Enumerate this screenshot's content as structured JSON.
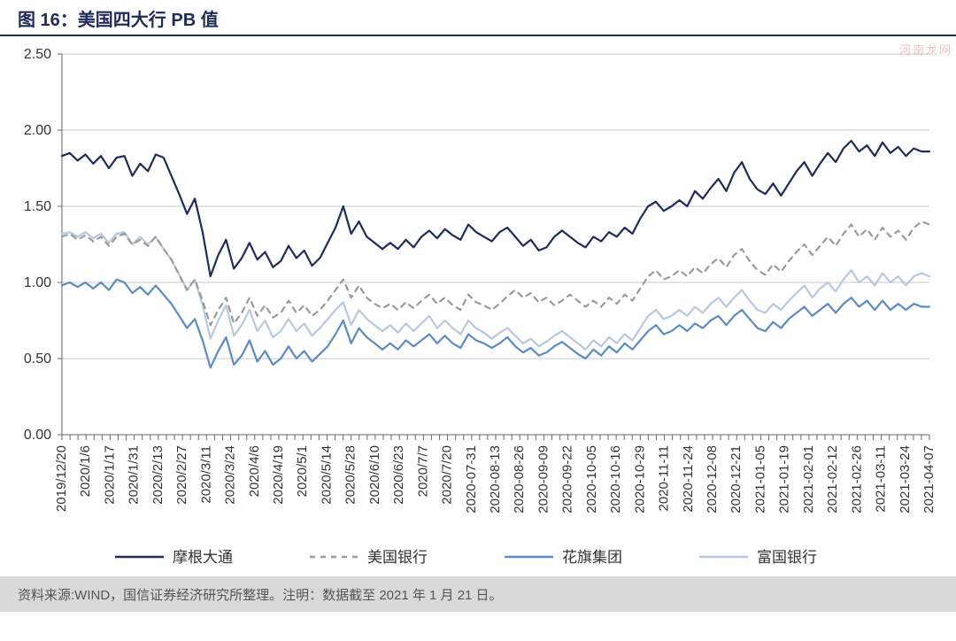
{
  "header": {
    "title": "图 16：美国四大行 PB 值"
  },
  "footer": {
    "text": "资料来源:WIND，国信证券经济研究所整理。注明：数据截至 2021 年 1 月 21 日。"
  },
  "watermark": "河南龙网",
  "chart": {
    "type": "line",
    "background_color": "#ffffff",
    "grid_color": "#c8c8c8",
    "axis_color": "#666666",
    "tick_color": "#666666",
    "label_fontsize": 16,
    "xlabel_fontsize": 15,
    "legend_fontsize": 17,
    "ylim": [
      0.0,
      2.5
    ],
    "ytick_step": 0.5,
    "yticks": [
      "0.00",
      "0.50",
      "1.00",
      "1.50",
      "2.00",
      "2.50"
    ],
    "x_labels": [
      "2019/12/20",
      "2020/1/6",
      "2020/1/17",
      "2020/1/31",
      "2020/2/13",
      "2020/2/27",
      "2020/3/11",
      "2020/3/24",
      "2020/4/6",
      "2020/4/19",
      "2020/5/1",
      "2020/5/14",
      "2020/5/28",
      "2020/6/10",
      "2020/6/23",
      "2020/7/7",
      "2020/7/20",
      "2020-07-31",
      "2020-08-13",
      "2020-08-26",
      "2020-09-09",
      "2020-09-22",
      "2020-10-05",
      "2020-10-16",
      "2020-10-29",
      "2020-11-11",
      "2020-11-24",
      "2020-12-08",
      "2020-12-21",
      "2021-01-05",
      "2021-01-19",
      "2021-02-01",
      "2021-02-12",
      "2021-02-26",
      "2021-03-11",
      "2021-03-24",
      "2021-04-07"
    ],
    "series": [
      {
        "name": "摩根大通",
        "color": "#1f2b5a",
        "line_width": 2.2,
        "dash": "none",
        "points": [
          1.83,
          1.85,
          1.8,
          1.84,
          1.78,
          1.83,
          1.75,
          1.82,
          1.83,
          1.7,
          1.78,
          1.73,
          1.84,
          1.82,
          1.7,
          1.58,
          1.45,
          1.55,
          1.33,
          1.04,
          1.18,
          1.28,
          1.09,
          1.16,
          1.26,
          1.15,
          1.2,
          1.1,
          1.14,
          1.24,
          1.16,
          1.21,
          1.11,
          1.16,
          1.26,
          1.36,
          1.5,
          1.32,
          1.4,
          1.3,
          1.26,
          1.22,
          1.26,
          1.22,
          1.28,
          1.23,
          1.3,
          1.34,
          1.29,
          1.35,
          1.31,
          1.28,
          1.38,
          1.33,
          1.3,
          1.27,
          1.33,
          1.36,
          1.3,
          1.24,
          1.28,
          1.21,
          1.23,
          1.3,
          1.34,
          1.3,
          1.26,
          1.23,
          1.3,
          1.27,
          1.33,
          1.3,
          1.36,
          1.32,
          1.42,
          1.5,
          1.53,
          1.47,
          1.5,
          1.54,
          1.5,
          1.6,
          1.55,
          1.62,
          1.68,
          1.6,
          1.72,
          1.79,
          1.68,
          1.61,
          1.58,
          1.65,
          1.57,
          1.65,
          1.73,
          1.79,
          1.7,
          1.78,
          1.85,
          1.79,
          1.88,
          1.93,
          1.86,
          1.9,
          1.83,
          1.92,
          1.85,
          1.89,
          1.83,
          1.88,
          1.86,
          1.86
        ]
      },
      {
        "name": "美国银行",
        "color": "#9a9a9a",
        "line_width": 2.2,
        "dash": "6,6",
        "points": [
          1.3,
          1.32,
          1.28,
          1.31,
          1.27,
          1.3,
          1.24,
          1.3,
          1.32,
          1.25,
          1.28,
          1.24,
          1.3,
          1.22,
          1.15,
          1.05,
          0.95,
          1.02,
          0.88,
          0.72,
          0.82,
          0.9,
          0.73,
          0.8,
          0.9,
          0.78,
          0.85,
          0.77,
          0.8,
          0.88,
          0.8,
          0.85,
          0.78,
          0.82,
          0.88,
          0.95,
          1.02,
          0.9,
          0.98,
          0.9,
          0.86,
          0.83,
          0.86,
          0.82,
          0.87,
          0.83,
          0.88,
          0.92,
          0.86,
          0.9,
          0.85,
          0.82,
          0.92,
          0.87,
          0.85,
          0.82,
          0.86,
          0.91,
          0.95,
          0.9,
          0.93,
          0.87,
          0.9,
          0.85,
          0.88,
          0.92,
          0.88,
          0.84,
          0.88,
          0.84,
          0.9,
          0.86,
          0.92,
          0.88,
          0.96,
          1.04,
          1.08,
          1.02,
          1.04,
          1.08,
          1.04,
          1.1,
          1.06,
          1.12,
          1.16,
          1.1,
          1.18,
          1.22,
          1.14,
          1.08,
          1.05,
          1.12,
          1.07,
          1.14,
          1.2,
          1.25,
          1.18,
          1.24,
          1.3,
          1.24,
          1.32,
          1.38,
          1.3,
          1.35,
          1.28,
          1.36,
          1.3,
          1.34,
          1.28,
          1.36,
          1.4,
          1.38
        ]
      },
      {
        "name": "花旗集团",
        "color": "#5a8bc4",
        "line_width": 2.2,
        "dash": "none",
        "points": [
          0.98,
          1.0,
          0.97,
          1.0,
          0.96,
          1.0,
          0.95,
          1.02,
          1.0,
          0.93,
          0.97,
          0.92,
          0.98,
          0.92,
          0.86,
          0.78,
          0.7,
          0.76,
          0.62,
          0.44,
          0.55,
          0.64,
          0.46,
          0.52,
          0.62,
          0.48,
          0.55,
          0.46,
          0.5,
          0.58,
          0.5,
          0.55,
          0.48,
          0.53,
          0.58,
          0.66,
          0.75,
          0.6,
          0.7,
          0.64,
          0.6,
          0.56,
          0.6,
          0.56,
          0.62,
          0.58,
          0.62,
          0.66,
          0.6,
          0.65,
          0.6,
          0.57,
          0.66,
          0.62,
          0.6,
          0.57,
          0.6,
          0.64,
          0.58,
          0.54,
          0.57,
          0.52,
          0.54,
          0.58,
          0.61,
          0.57,
          0.53,
          0.5,
          0.56,
          0.52,
          0.58,
          0.54,
          0.6,
          0.56,
          0.62,
          0.68,
          0.72,
          0.66,
          0.68,
          0.72,
          0.68,
          0.73,
          0.7,
          0.75,
          0.78,
          0.72,
          0.78,
          0.82,
          0.76,
          0.7,
          0.68,
          0.74,
          0.7,
          0.76,
          0.8,
          0.84,
          0.78,
          0.82,
          0.86,
          0.8,
          0.86,
          0.9,
          0.84,
          0.88,
          0.82,
          0.88,
          0.82,
          0.86,
          0.82,
          0.86,
          0.84,
          0.84
        ]
      },
      {
        "name": "富国银行",
        "color": "#b8c8e0",
        "line_width": 2.2,
        "dash": "none",
        "points": [
          1.32,
          1.33,
          1.3,
          1.33,
          1.29,
          1.32,
          1.26,
          1.32,
          1.33,
          1.25,
          1.3,
          1.25,
          1.3,
          1.22,
          1.15,
          1.05,
          0.95,
          1.02,
          0.85,
          0.63,
          0.75,
          0.85,
          0.65,
          0.72,
          0.82,
          0.68,
          0.75,
          0.64,
          0.68,
          0.76,
          0.68,
          0.73,
          0.65,
          0.7,
          0.76,
          0.82,
          0.87,
          0.72,
          0.82,
          0.76,
          0.72,
          0.68,
          0.72,
          0.67,
          0.73,
          0.68,
          0.73,
          0.78,
          0.7,
          0.75,
          0.7,
          0.66,
          0.75,
          0.7,
          0.67,
          0.63,
          0.67,
          0.7,
          0.65,
          0.6,
          0.63,
          0.58,
          0.61,
          0.65,
          0.68,
          0.64,
          0.6,
          0.56,
          0.62,
          0.58,
          0.64,
          0.6,
          0.66,
          0.62,
          0.7,
          0.78,
          0.82,
          0.76,
          0.78,
          0.82,
          0.78,
          0.84,
          0.8,
          0.86,
          0.9,
          0.84,
          0.9,
          0.95,
          0.88,
          0.82,
          0.8,
          0.86,
          0.82,
          0.88,
          0.93,
          0.98,
          0.9,
          0.96,
          1.0,
          0.94,
          1.02,
          1.08,
          1.0,
          1.04,
          0.98,
          1.06,
          1.0,
          1.04,
          0.98,
          1.04,
          1.06,
          1.04
        ]
      }
    ],
    "legend": {
      "position": "bottom"
    }
  }
}
